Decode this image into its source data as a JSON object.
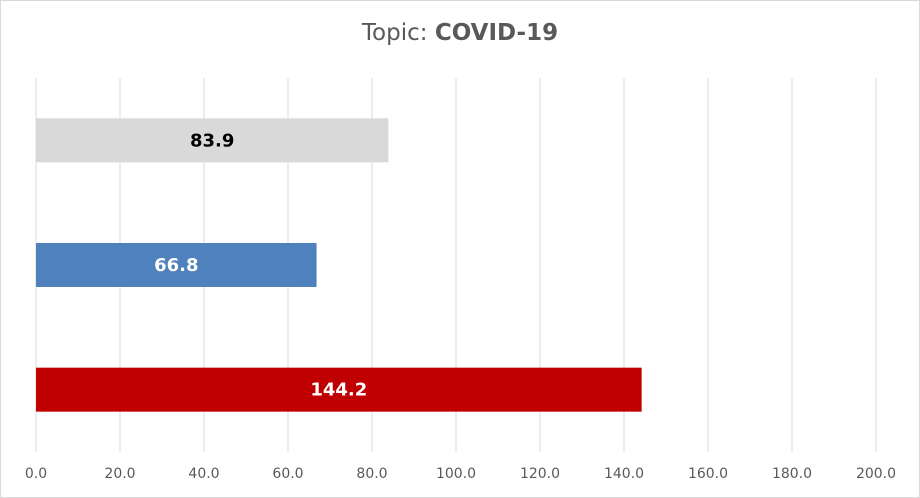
{
  "title": {
    "prefix": "Topic: ",
    "topic": "COVID-19"
  },
  "chart_data": {
    "type": "bar",
    "orientation": "horizontal",
    "title": "Topic: COVID-19",
    "xlabel": "",
    "ylabel": "",
    "xlim": [
      0,
      200
    ],
    "x_ticks": [
      "0.0",
      "20.0",
      "40.0",
      "60.0",
      "80.0",
      "100.0",
      "120.0",
      "140.0",
      "160.0",
      "180.0",
      "200.0"
    ],
    "grid": true,
    "legend": "none",
    "bars": [
      {
        "value": 83.9,
        "label": "83.9",
        "color": "#d9d9d9",
        "label_color": "#000000"
      },
      {
        "value": 66.8,
        "label": "66.8",
        "color": "#4f81bd",
        "label_color": "#ffffff"
      },
      {
        "value": 144.2,
        "label": "144.2",
        "color": "#c00000",
        "label_color": "#ffffff"
      }
    ]
  }
}
